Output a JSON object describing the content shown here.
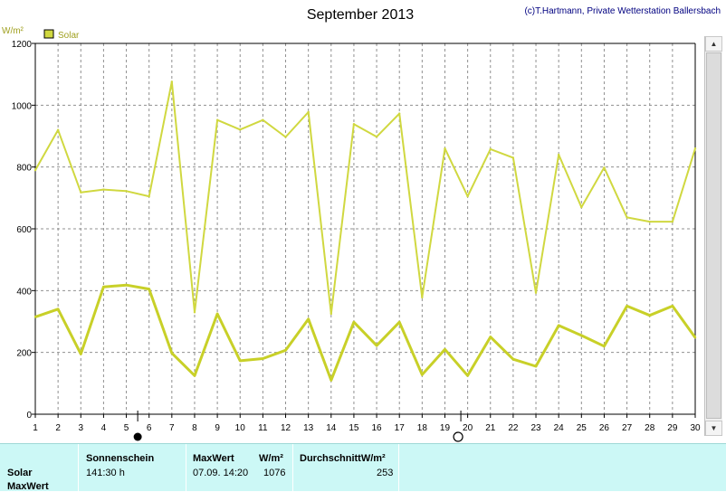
{
  "header": {
    "title": "September 2013",
    "credit": "(c)T.Hartmann, Private Wetterstation Ballersbach"
  },
  "chart_data": {
    "type": "line",
    "title": "September 2013",
    "ylabel": "W/m²",
    "ylim": [
      0,
      1200
    ],
    "yticks": [
      0,
      200,
      400,
      600,
      800,
      1000,
      1200
    ],
    "x": [
      1,
      2,
      3,
      4,
      5,
      6,
      7,
      8,
      9,
      10,
      11,
      12,
      13,
      14,
      15,
      16,
      17,
      18,
      19,
      20,
      21,
      22,
      23,
      24,
      25,
      26,
      27,
      28,
      29,
      30
    ],
    "legend": [
      "Solar"
    ],
    "legend_position": "top-left",
    "grid": true,
    "series": [
      {
        "name": "Solar",
        "role": "max",
        "color": "#d0d840",
        "values": [
          790,
          920,
          718,
          727,
          722,
          705,
          1076,
          330,
          952,
          921,
          952,
          897,
          978,
          325,
          939,
          898,
          973,
          378,
          860,
          705,
          858,
          830,
          393,
          840,
          670,
          798,
          637,
          623,
          623,
          860
        ]
      },
      {
        "name": "Solar",
        "role": "average",
        "color": "#c8d028",
        "values": [
          315,
          340,
          195,
          412,
          418,
          405,
          198,
          125,
          325,
          173,
          180,
          207,
          308,
          110,
          298,
          222,
          298,
          128,
          210,
          125,
          250,
          178,
          155,
          287,
          255,
          220,
          350,
          320,
          350,
          248
        ]
      }
    ],
    "moon_phases": [
      {
        "day": 5.5,
        "phase": "full-moon"
      },
      {
        "day": 19.7,
        "phase": "new-moon"
      }
    ]
  },
  "stats": {
    "row_labels": [
      "Solar",
      "MaxWert"
    ],
    "sunshine_header": "Sonnenschein",
    "sunshine_value": "141:30 h",
    "max_header": "MaxWert",
    "max_unit": "W/m²",
    "max_datetime": "07.09.  14:20",
    "max_value": "1076",
    "avg_header": "DurchschnittW/m²",
    "avg_value": "253"
  },
  "colors": {
    "line": "#d0d840",
    "grid": "#909090",
    "panel": "#ccf8f6",
    "credit": "#000080"
  }
}
